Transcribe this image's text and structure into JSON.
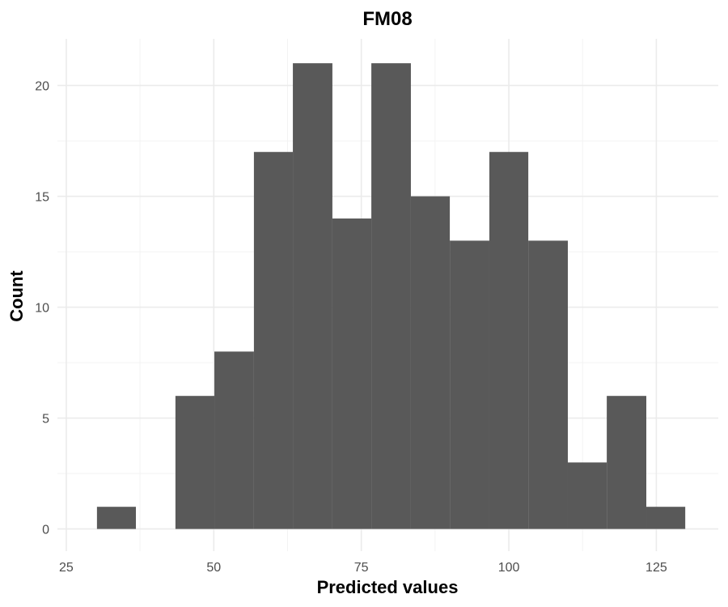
{
  "chart_data": {
    "type": "bar",
    "title": "FM08",
    "xlabel": "Predicted values",
    "ylabel": "Count",
    "xlim": [
      23.5,
      135.5
    ],
    "ylim": [
      -1.0,
      22.1
    ],
    "x_ticks": [
      25,
      50,
      75,
      100,
      125
    ],
    "y_ticks": [
      0,
      5,
      10,
      15,
      20
    ],
    "bins": [
      {
        "x0": 30.2,
        "x1": 36.8,
        "count": 1
      },
      {
        "x0": 36.8,
        "x1": 43.5,
        "count": 0
      },
      {
        "x0": 43.5,
        "x1": 50.1,
        "count": 6
      },
      {
        "x0": 50.1,
        "x1": 56.8,
        "count": 8
      },
      {
        "x0": 56.8,
        "x1": 63.4,
        "count": 17
      },
      {
        "x0": 63.4,
        "x1": 70.1,
        "count": 21
      },
      {
        "x0": 70.1,
        "x1": 76.7,
        "count": 14
      },
      {
        "x0": 76.7,
        "x1": 83.4,
        "count": 21
      },
      {
        "x0": 83.4,
        "x1": 90.0,
        "count": 15
      },
      {
        "x0": 90.0,
        "x1": 96.7,
        "count": 13
      },
      {
        "x0": 96.7,
        "x1": 103.3,
        "count": 17
      },
      {
        "x0": 103.3,
        "x1": 110.0,
        "count": 13
      },
      {
        "x0": 110.0,
        "x1": 116.6,
        "count": 3
      },
      {
        "x0": 116.6,
        "x1": 123.3,
        "count": 6
      },
      {
        "x0": 123.3,
        "x1": 129.9,
        "count": 1
      }
    ],
    "bar_color": "#595959",
    "grid": true,
    "legend": "none"
  }
}
